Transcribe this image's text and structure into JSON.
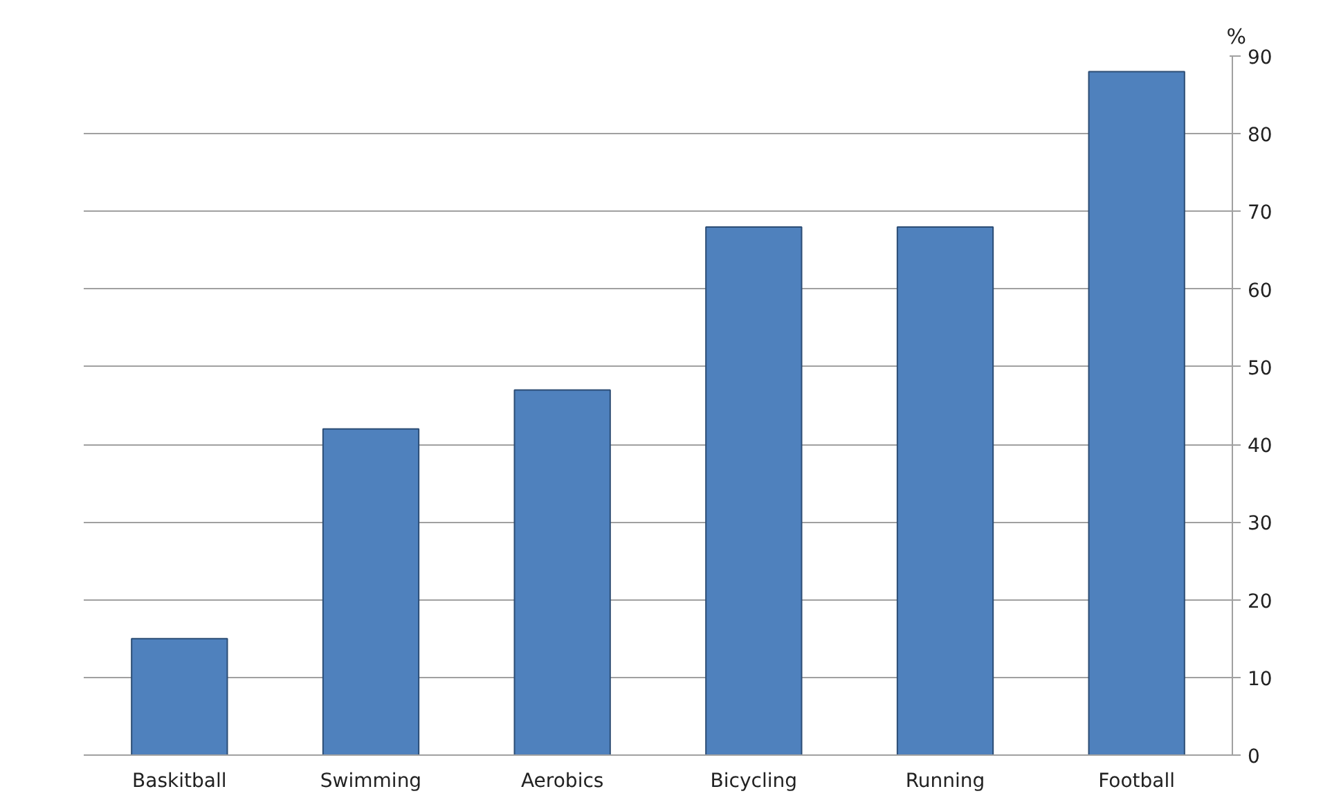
{
  "chart_data": {
    "type": "bar",
    "categories": [
      "Baskitball",
      "Swimming",
      "Aerobics",
      "Bicycling",
      "Running",
      "Football"
    ],
    "values": [
      15,
      42,
      47,
      68,
      68,
      88
    ],
    "color": "#4f81bd",
    "ylabel": "%",
    "ylim": [
      0,
      90
    ],
    "yticks": [
      0,
      10,
      20,
      30,
      40,
      50,
      60,
      70,
      80,
      90
    ],
    "grid": "y"
  }
}
